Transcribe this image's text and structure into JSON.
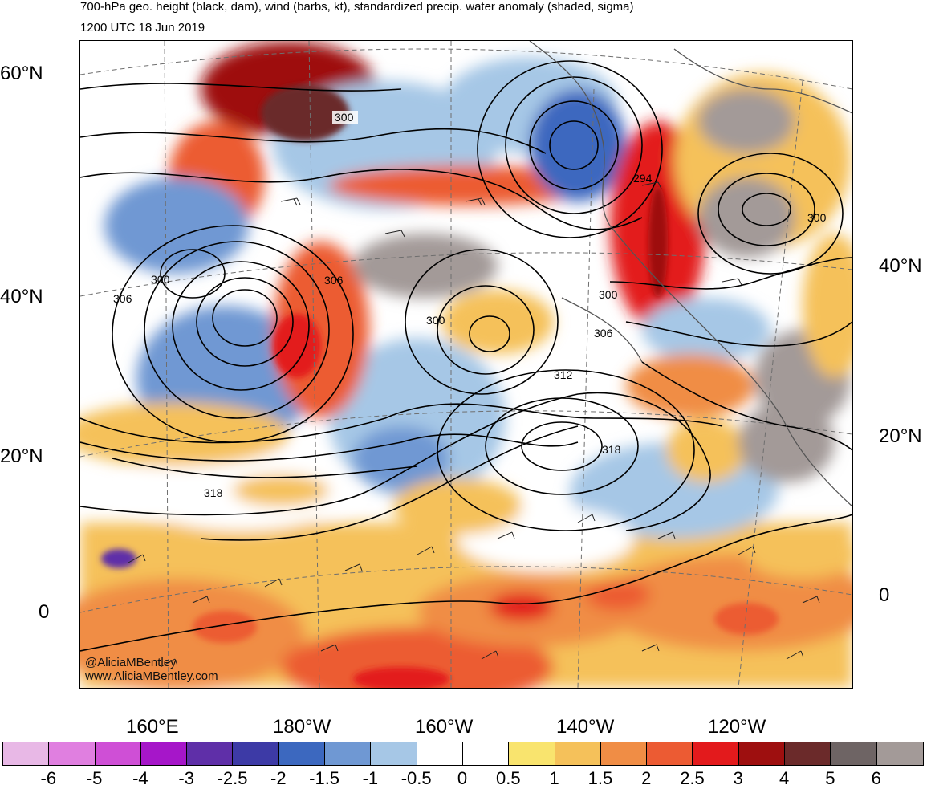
{
  "title": "700-hPa geo. height (black, dam), wind (barbs, kt), standardized precip. water anomaly (shaded, sigma)",
  "subtitle": "1200 UTC 18 Jun 2019",
  "credit": {
    "twitter": "@AliciaMBentley",
    "website": "www.AliciaMBentley.com"
  },
  "left_lat_labels": [
    "60°N",
    "40°N",
    "20°N",
    "0"
  ],
  "right_lat_labels": [
    "40°N",
    "20°N",
    "0"
  ],
  "lon_labels": [
    "160°E",
    "180°W",
    "160°W",
    "140°W",
    "120°W"
  ],
  "contour_labels": [
    "300",
    "294",
    "300",
    "306",
    "300",
    "306",
    "300",
    "306",
    "300",
    "312",
    "318",
    "318"
  ],
  "colorbar": {
    "labels": [
      "-6",
      "-5",
      "-4",
      "-3",
      "-2.5",
      "-2",
      "-1.5",
      "-1",
      "-0.5",
      "0",
      "0.5",
      "1",
      "1.5",
      "2",
      "2.5",
      "3",
      "4",
      "5",
      "6"
    ],
    "colors": [
      "#e8b8e6",
      "#e07fe0",
      "#cf4fd6",
      "#a616c9",
      "#5f2fa8",
      "#3d3aa6",
      "#3c68bf",
      "#6f98d3",
      "#a6c7e6",
      "#ffffff",
      "#ffffff",
      "#f9e46e",
      "#f5c15a",
      "#f08d45",
      "#ec5b33",
      "#e31a1c",
      "#9e0f0f",
      "#6b2a2a",
      "#6e6464",
      "#a39a98"
    ]
  }
}
